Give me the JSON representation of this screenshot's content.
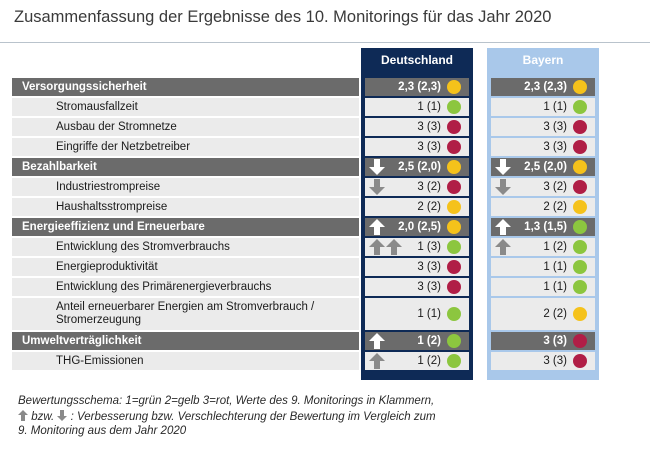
{
  "title": "Zusammenfassung der Ergebnisse des 10. Monitorings für das Jahr 2020",
  "columns": {
    "de": "Deutschland",
    "by": "Bayern"
  },
  "colors": {
    "green": "#8cc63f",
    "yellow": "#f5c21b",
    "red": "#b01e46",
    "navy": "#0e2a56",
    "lightblue": "#a9c8ea",
    "section_gray": "#6b6b6b"
  },
  "rows": [
    {
      "type": "section",
      "label": "Versorgungssicherheit",
      "de": {
        "value": "2,3 (2,3)",
        "color": "yellow",
        "trend": ""
      },
      "by": {
        "value": "2,3 (2,3)",
        "color": "yellow",
        "trend": ""
      }
    },
    {
      "type": "item",
      "label": "Stromausfallzeit",
      "de": {
        "value": "1 (1)",
        "color": "green",
        "trend": ""
      },
      "by": {
        "value": "1 (1)",
        "color": "green",
        "trend": ""
      }
    },
    {
      "type": "item",
      "label": "Ausbau der Stromnetze",
      "de": {
        "value": "3 (3)",
        "color": "red",
        "trend": ""
      },
      "by": {
        "value": "3 (3)",
        "color": "red",
        "trend": ""
      }
    },
    {
      "type": "item",
      "label": "Eingriffe der Netzbetreiber",
      "de": {
        "value": "3 (3)",
        "color": "red",
        "trend": ""
      },
      "by": {
        "value": "3 (3)",
        "color": "red",
        "trend": ""
      }
    },
    {
      "type": "section",
      "label": "Bezahlbarkeit",
      "de": {
        "value": "2,5 (2,0)",
        "color": "yellow",
        "trend": "down"
      },
      "by": {
        "value": "2,5 (2,0)",
        "color": "yellow",
        "trend": "down"
      }
    },
    {
      "type": "item",
      "label": "Industriestrompreise",
      "de": {
        "value": "3 (2)",
        "color": "red",
        "trend": "down"
      },
      "by": {
        "value": "3 (2)",
        "color": "red",
        "trend": "down"
      }
    },
    {
      "type": "item",
      "label": "Haushaltsstrompreise",
      "de": {
        "value": "2 (2)",
        "color": "yellow",
        "trend": ""
      },
      "by": {
        "value": "2 (2)",
        "color": "yellow",
        "trend": ""
      }
    },
    {
      "type": "section",
      "label": "Energieeffizienz und Erneuerbare",
      "de": {
        "value": "2,0 (2,5)",
        "color": "yellow",
        "trend": "up"
      },
      "by": {
        "value": "1,3 (1,5)",
        "color": "green",
        "trend": "up"
      }
    },
    {
      "type": "item",
      "label": "Entwicklung des Stromverbrauchs",
      "de": {
        "value": "1 (3)",
        "color": "green",
        "trend": "upup"
      },
      "by": {
        "value": "1 (2)",
        "color": "green",
        "trend": "up"
      }
    },
    {
      "type": "item",
      "label": "Energieproduktivität",
      "de": {
        "value": "3 (3)",
        "color": "red",
        "trend": ""
      },
      "by": {
        "value": "1 (1)",
        "color": "green",
        "trend": ""
      }
    },
    {
      "type": "item",
      "label": "Entwicklung des Primärenergieverbrauchs",
      "de": {
        "value": "3 (3)",
        "color": "red",
        "trend": ""
      },
      "by": {
        "value": "1 (1)",
        "color": "green",
        "trend": ""
      }
    },
    {
      "type": "item",
      "label": "Anteil erneuerbarer Energien am Stromverbrauch / Stromerzeugung",
      "tall": true,
      "de": {
        "value": "1 (1)",
        "color": "green",
        "trend": ""
      },
      "by": {
        "value": "2 (2)",
        "color": "yellow",
        "trend": ""
      }
    },
    {
      "type": "section",
      "label": "Umweltverträglichkeit",
      "de": {
        "value": "1 (2)",
        "color": "green",
        "trend": "up"
      },
      "by": {
        "value": "3 (3)",
        "color": "red",
        "trend": ""
      }
    },
    {
      "type": "item",
      "label": "THG-Emissionen",
      "de": {
        "value": "1 (2)",
        "color": "green",
        "trend": "up"
      },
      "by": {
        "value": "3 (3)",
        "color": "red",
        "trend": ""
      }
    }
  ],
  "legend": {
    "line1": "Bewertungsschema: 1=grün 2=gelb 3=rot, Werte des 9. Monitorings in Klammern,",
    "line2_a": "bzw.",
    "line2_b": ": Verbesserung bzw. Verschlechterung der Bewertung im Vergleich zum",
    "line3": "9. Monitoring aus dem Jahr 2020"
  }
}
